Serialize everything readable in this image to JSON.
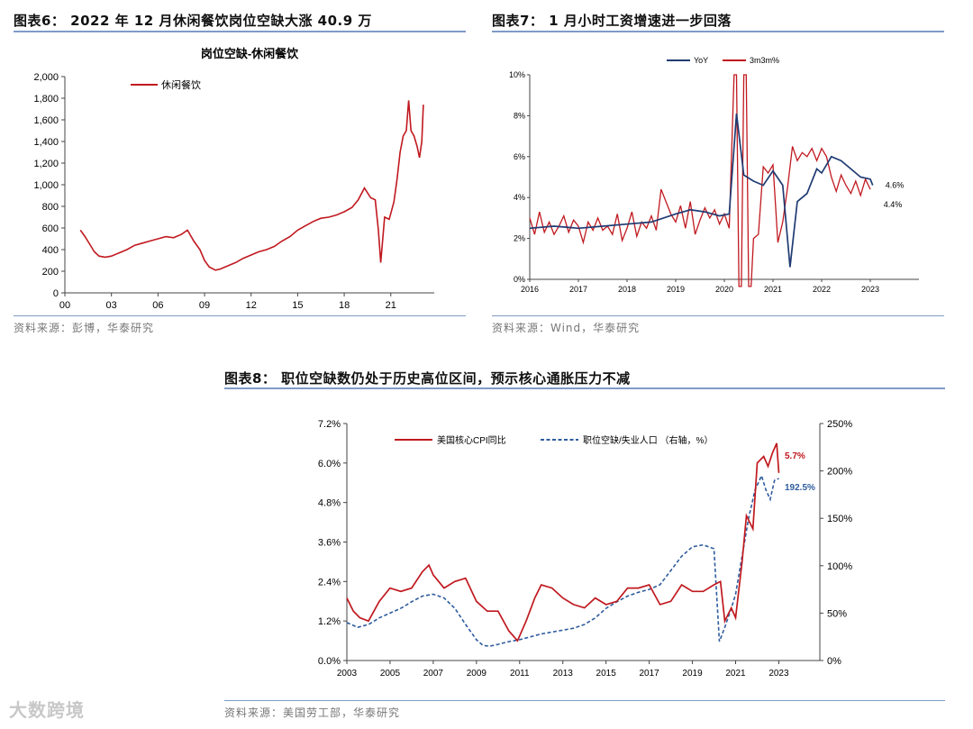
{
  "fig6": {
    "heading": "图表6：  2022 年 12 月休闲餐饮岗位空缺大涨 40.9 万",
    "source": "资料来源：彭博，华泰研究"
  },
  "fig7": {
    "heading": "图表7：  1 月小时工资增速进一步回落",
    "source": "资料来源：Wind，华泰研究"
  },
  "fig8": {
    "heading": "图表8：  职位空缺数仍处于历史高位区间，预示核心通胀压力不减",
    "source": "资料来源：美国劳工部，华泰研究"
  },
  "watermark": "大数跨境",
  "colors": {
    "red": "#c0191f",
    "navy": "#1f3b73",
    "blue_dashed": "#2f5c9e",
    "rule": "#7f9bc7"
  },
  "chart_data": [
    {
      "id": "fig6",
      "type": "line",
      "title": "岗位空缺-休闲餐饮",
      "legend": "top-left",
      "x_tick_labels": [
        "00",
        "03",
        "06",
        "09",
        "12",
        "15",
        "18",
        "21"
      ],
      "x_tick_years": [
        2000,
        2003,
        2006,
        2009,
        2012,
        2015,
        2018,
        2021
      ],
      "ylim": [
        0,
        2000
      ],
      "y_ticks": [
        0,
        200,
        400,
        600,
        800,
        1000,
        1200,
        1400,
        1600,
        1800,
        2000
      ],
      "y_tick_labels": [
        "0",
        "200",
        "400",
        "600",
        "800",
        "1,000",
        "1,200",
        "1,400",
        "1,600",
        "1,800",
        "2,000"
      ],
      "series": [
        {
          "name": "休闲餐饮",
          "color": "#c0191f",
          "x": [
            2001.0,
            2001.3,
            2001.6,
            2001.9,
            2002.2,
            2002.6,
            2003.0,
            2003.5,
            2004.0,
            2004.5,
            2005.0,
            2005.5,
            2006.0,
            2006.5,
            2007.0,
            2007.5,
            2007.9,
            2008.3,
            2008.7,
            2009.0,
            2009.3,
            2009.7,
            2010.0,
            2010.5,
            2011.0,
            2011.5,
            2012.0,
            2012.5,
            2013.0,
            2013.5,
            2014.0,
            2014.5,
            2015.0,
            2015.5,
            2016.0,
            2016.5,
            2017.0,
            2017.5,
            2018.0,
            2018.5,
            2018.9,
            2019.3,
            2019.7,
            2020.0,
            2020.2,
            2020.35,
            2020.6,
            2020.9,
            2021.2,
            2021.4,
            2021.6,
            2021.8,
            2022.0,
            2022.15,
            2022.3,
            2022.5,
            2022.7,
            2022.85,
            2023.0,
            2023.1
          ],
          "y": [
            580,
            520,
            450,
            380,
            340,
            330,
            340,
            370,
            400,
            440,
            460,
            480,
            500,
            520,
            510,
            540,
            580,
            480,
            400,
            300,
            240,
            210,
            220,
            250,
            280,
            320,
            350,
            380,
            400,
            430,
            480,
            520,
            580,
            620,
            660,
            690,
            700,
            720,
            750,
            790,
            860,
            970,
            880,
            860,
            580,
            280,
            700,
            680,
            840,
            1050,
            1300,
            1450,
            1500,
            1780,
            1500,
            1450,
            1350,
            1250,
            1400,
            1740
          ]
        }
      ]
    },
    {
      "id": "fig7",
      "type": "line",
      "title": "",
      "legend": "top-center",
      "x_tick_labels": [
        "2016",
        "2017",
        "2018",
        "2019",
        "2020",
        "2021",
        "2022",
        "2023"
      ],
      "x_tick_years": [
        2016,
        2017,
        2018,
        2019,
        2020,
        2021,
        2022,
        2023
      ],
      "ylim": [
        0,
        10
      ],
      "y_ticks": [
        0,
        2,
        4,
        6,
        8,
        10
      ],
      "y_tick_labels": [
        "0%",
        "2%",
        "4%",
        "6%",
        "8%",
        "10%"
      ],
      "annotations": [
        "4.6%",
        "4.4%"
      ],
      "series": [
        {
          "name": "YoY",
          "color": "#1f3b73",
          "x": [
            2016.0,
            2016.5,
            2017.0,
            2017.5,
            2018.0,
            2018.5,
            2019.0,
            2019.3,
            2019.6,
            2019.9,
            2020.1,
            2020.25,
            2020.4,
            2020.6,
            2020.8,
            2021.0,
            2021.2,
            2021.35,
            2021.5,
            2021.7,
            2021.9,
            2022.0,
            2022.2,
            2022.4,
            2022.6,
            2022.8,
            2023.0,
            2023.05
          ],
          "y": [
            2.5,
            2.6,
            2.5,
            2.6,
            2.7,
            2.8,
            3.2,
            3.4,
            3.3,
            3.1,
            3.2,
            8.1,
            5.1,
            4.8,
            4.6,
            5.3,
            4.6,
            0.6,
            3.8,
            4.2,
            5.4,
            5.2,
            6.0,
            5.8,
            5.4,
            5.0,
            4.9,
            4.6
          ]
        },
        {
          "name": "3m3m%",
          "color": "#c0191f",
          "x": [
            2016.0,
            2016.1,
            2016.2,
            2016.3,
            2016.4,
            2016.5,
            2016.6,
            2016.7,
            2016.8,
            2016.9,
            2017.0,
            2017.1,
            2017.2,
            2017.3,
            2017.4,
            2017.5,
            2017.6,
            2017.7,
            2017.8,
            2017.9,
            2018.0,
            2018.1,
            2018.2,
            2018.3,
            2018.4,
            2018.5,
            2018.6,
            2018.7,
            2018.8,
            2018.9,
            2019.0,
            2019.1,
            2019.2,
            2019.3,
            2019.4,
            2019.5,
            2019.6,
            2019.7,
            2019.8,
            2019.9,
            2020.0,
            2020.1,
            2020.2,
            2020.25,
            2020.3,
            2020.35,
            2020.4,
            2020.45,
            2020.5,
            2020.55,
            2020.6,
            2020.7,
            2020.8,
            2020.9,
            2021.0,
            2021.1,
            2021.2,
            2021.3,
            2021.4,
            2021.5,
            2021.6,
            2021.7,
            2021.8,
            2021.9,
            2022.0,
            2022.1,
            2022.2,
            2022.3,
            2022.4,
            2022.5,
            2022.6,
            2022.7,
            2022.8,
            2022.9,
            2023.0
          ],
          "y": [
            3.0,
            2.2,
            3.3,
            2.3,
            2.8,
            2.2,
            2.6,
            3.1,
            2.3,
            2.9,
            2.6,
            1.8,
            2.8,
            2.4,
            3.0,
            2.4,
            2.6,
            2.2,
            3.2,
            1.9,
            2.5,
            3.3,
            2.1,
            2.8,
            2.5,
            3.1,
            2.4,
            4.4,
            3.8,
            3.2,
            2.8,
            3.6,
            2.5,
            3.8,
            2.2,
            2.9,
            3.5,
            3.0,
            3.4,
            2.7,
            3.2,
            2.5,
            10.0,
            10.0,
            -1.0,
            -1.0,
            10.0,
            10.0,
            -1.0,
            -1.0,
            2.0,
            2.2,
            5.5,
            5.2,
            5.6,
            1.8,
            2.8,
            4.5,
            6.5,
            5.8,
            6.2,
            6.0,
            6.4,
            5.8,
            6.4,
            6.0,
            5.0,
            4.3,
            5.1,
            4.6,
            4.2,
            4.8,
            4.1,
            4.9,
            4.4
          ]
        }
      ]
    },
    {
      "id": "fig8",
      "type": "line",
      "title": "",
      "legend": "top",
      "x_tick_labels": [
        "2003",
        "2005",
        "2007",
        "2009",
        "2011",
        "2013",
        "2015",
        "2017",
        "2019",
        "2021",
        "2023"
      ],
      "x_tick_years": [
        2003,
        2005,
        2007,
        2009,
        2011,
        2013,
        2015,
        2017,
        2019,
        2021,
        2023
      ],
      "ylim_left": [
        0,
        7.2
      ],
      "y_ticks_left": [
        0,
        1.2,
        2.4,
        3.6,
        4.8,
        6.0,
        7.2
      ],
      "y_tick_labels_left": [
        "0.0%",
        "1.2%",
        "2.4%",
        "3.6%",
        "4.8%",
        "6.0%",
        "7.2%"
      ],
      "ylim_right": [
        0,
        250
      ],
      "y_ticks_right": [
        0,
        50,
        100,
        150,
        200,
        250
      ],
      "y_tick_labels_right": [
        "0%",
        "50%",
        "100%",
        "150%",
        "200%",
        "250%"
      ],
      "annotations": [
        "5.7%",
        "192.5%"
      ],
      "series": [
        {
          "name": "美国核心CPI同比",
          "axis": "left",
          "color": "#c0191f",
          "x": [
            2003.0,
            2003.3,
            2003.6,
            2004.0,
            2004.5,
            2005.0,
            2005.5,
            2006.0,
            2006.5,
            2006.8,
            2007.0,
            2007.5,
            2008.0,
            2008.5,
            2009.0,
            2009.5,
            2010.0,
            2010.5,
            2010.9,
            2011.3,
            2011.7,
            2012.0,
            2012.5,
            2013.0,
            2013.5,
            2014.0,
            2014.5,
            2015.0,
            2015.5,
            2016.0,
            2016.5,
            2017.0,
            2017.5,
            2018.0,
            2018.5,
            2019.0,
            2019.5,
            2020.0,
            2020.3,
            2020.5,
            2020.8,
            2021.0,
            2021.3,
            2021.5,
            2021.8,
            2022.0,
            2022.3,
            2022.5,
            2022.7,
            2022.9,
            2023.0
          ],
          "y": [
            1.9,
            1.5,
            1.3,
            1.2,
            1.8,
            2.2,
            2.1,
            2.2,
            2.7,
            2.9,
            2.6,
            2.2,
            2.4,
            2.5,
            1.8,
            1.5,
            1.5,
            0.9,
            0.6,
            1.2,
            1.9,
            2.3,
            2.2,
            1.9,
            1.7,
            1.6,
            1.9,
            1.7,
            1.8,
            2.2,
            2.2,
            2.3,
            1.7,
            1.8,
            2.3,
            2.1,
            2.1,
            2.3,
            2.4,
            1.2,
            1.6,
            1.3,
            3.0,
            4.4,
            4.0,
            6.0,
            6.2,
            5.9,
            6.3,
            6.6,
            5.7
          ]
        },
        {
          "name": "职位空缺/失业人口 （右轴，%）",
          "axis": "right",
          "color": "#2f5c9e",
          "dashed": true,
          "x": [
            2003.0,
            2003.5,
            2004.0,
            2004.5,
            2005.0,
            2005.5,
            2006.0,
            2006.5,
            2007.0,
            2007.5,
            2008.0,
            2008.5,
            2009.0,
            2009.3,
            2009.6,
            2010.0,
            2010.5,
            2011.0,
            2011.5,
            2012.0,
            2012.5,
            2013.0,
            2013.5,
            2014.0,
            2014.5,
            2015.0,
            2015.5,
            2016.0,
            2016.5,
            2017.0,
            2017.5,
            2018.0,
            2018.5,
            2019.0,
            2019.5,
            2020.0,
            2020.25,
            2020.5,
            2020.8,
            2021.0,
            2021.3,
            2021.6,
            2021.9,
            2022.2,
            2022.4,
            2022.6,
            2022.8,
            2023.0
          ],
          "y": [
            40,
            35,
            38,
            45,
            50,
            55,
            62,
            68,
            70,
            66,
            55,
            38,
            22,
            16,
            15,
            17,
            20,
            22,
            25,
            28,
            30,
            32,
            34,
            38,
            45,
            55,
            62,
            68,
            72,
            75,
            80,
            95,
            110,
            120,
            122,
            118,
            20,
            35,
            55,
            70,
            110,
            150,
            180,
            195,
            180,
            170,
            190,
            192
          ]
        }
      ]
    }
  ]
}
